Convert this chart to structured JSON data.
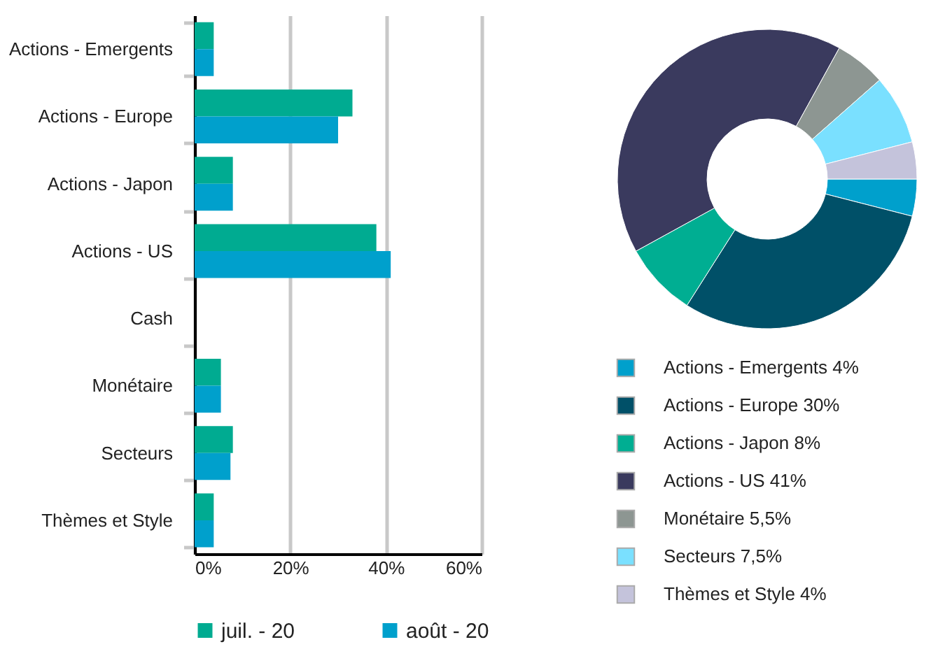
{
  "chart_data": [
    {
      "type": "bar",
      "orientation": "horizontal",
      "categories": [
        "Actions - Emergents",
        "Actions - Europe",
        "Actions - Japon",
        "Actions - US",
        "Cash",
        "Monétaire",
        "Secteurs",
        "Thèmes et Style"
      ],
      "series": [
        {
          "name": "juil. - 20",
          "color": "#00ab91",
          "values": [
            4,
            33,
            8,
            38,
            0,
            5.5,
            8,
            4
          ]
        },
        {
          "name": "août - 20",
          "color": "#00a0cc",
          "values": [
            4,
            30,
            8,
            41,
            0,
            5.5,
            7.5,
            4
          ]
        }
      ],
      "xlim": [
        0,
        60
      ],
      "xticks": [
        {
          "value": 0,
          "label": "0%"
        },
        {
          "value": 20,
          "label": "20%"
        },
        {
          "value": 40,
          "label": "40%"
        },
        {
          "value": 60,
          "label": "60%"
        }
      ],
      "grid": "x",
      "legend": "bottom"
    },
    {
      "type": "donut",
      "categories": [
        "Actions - Emergents",
        "Actions - Europe",
        "Actions - Japon",
        "Actions - US",
        "Monétaire",
        "Secteurs",
        "Thèmes et Style"
      ],
      "values": [
        4,
        30,
        8,
        41,
        5.5,
        7.5,
        4
      ],
      "value_labels": [
        "4%",
        "30%",
        "8%",
        "41%",
        "5,5%",
        "7,5%",
        "4%"
      ],
      "colors": [
        "#00a0cc",
        "#005068",
        "#00ae92",
        "#3a3a5e",
        "#8d9692",
        "#7ae0ff",
        "#c4c3db"
      ],
      "legend": "bottom"
    }
  ]
}
